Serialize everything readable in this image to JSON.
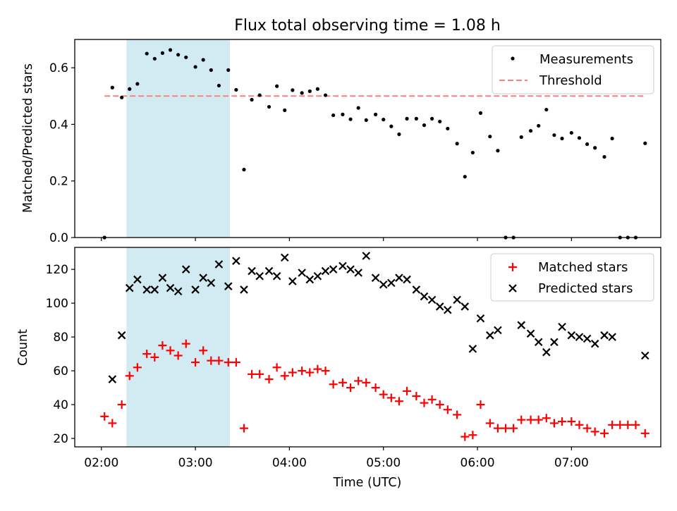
{
  "figure": {
    "title": "Flux total observing time = 1.08 h",
    "xlabel": "Time (UTC)",
    "x_tick_labels": [
      "02:00",
      "03:00",
      "04:00",
      "05:00",
      "06:00",
      "07:00"
    ],
    "x_range": [
      "01:43",
      "07:57"
    ],
    "highlight_span": [
      "02:16",
      "03:22"
    ],
    "highlight_color": "#add8e6"
  },
  "chart_data": [
    {
      "type": "scatter",
      "panel": "top",
      "ylabel": "Matched/Predicted stars",
      "ylim": [
        0,
        0.7
      ],
      "y_ticks": [
        "0.0",
        "0.2",
        "0.4",
        "0.6"
      ],
      "grid": false,
      "legend_position": "top-right",
      "series": [
        {
          "name": "Measurements",
          "marker": "dot",
          "color": "#000000",
          "points": [
            [
              "02:02",
              0.0
            ],
            [
              "02:07",
              0.53
            ],
            [
              "02:13",
              0.495
            ],
            [
              "02:18",
              0.525
            ],
            [
              "02:23",
              0.543
            ],
            [
              "02:29",
              0.65
            ],
            [
              "02:34",
              0.632
            ],
            [
              "02:39",
              0.652
            ],
            [
              "02:44",
              0.663
            ],
            [
              "02:49",
              0.646
            ],
            [
              "02:54",
              0.637
            ],
            [
              "03:00",
              0.603
            ],
            [
              "03:05",
              0.628
            ],
            [
              "03:10",
              0.592
            ],
            [
              "03:15",
              0.537
            ],
            [
              "03:21",
              0.592
            ],
            [
              "03:26",
              0.522
            ],
            [
              "03:31",
              0.24
            ],
            [
              "03:36",
              0.487
            ],
            [
              "03:41",
              0.503
            ],
            [
              "03:47",
              0.462
            ],
            [
              "03:52",
              0.535
            ],
            [
              "03:57",
              0.45
            ],
            [
              "04:02",
              0.521
            ],
            [
              "04:08",
              0.511
            ],
            [
              "04:13",
              0.517
            ],
            [
              "04:18",
              0.525
            ],
            [
              "04:23",
              0.503
            ],
            [
              "04:28",
              0.432
            ],
            [
              "04:34",
              0.435
            ],
            [
              "04:39",
              0.418
            ],
            [
              "04:44",
              0.458
            ],
            [
              "04:49",
              0.415
            ],
            [
              "04:55",
              0.435
            ],
            [
              "05:00",
              0.417
            ],
            [
              "05:05",
              0.393
            ],
            [
              "05:10",
              0.365
            ],
            [
              "05:15",
              0.42
            ],
            [
              "05:21",
              0.42
            ],
            [
              "05:26",
              0.397
            ],
            [
              "05:31",
              0.42
            ],
            [
              "05:36",
              0.41
            ],
            [
              "05:41",
              0.385
            ],
            [
              "05:47",
              0.332
            ],
            [
              "05:52",
              0.215
            ],
            [
              "05:57",
              0.3
            ],
            [
              "06:02",
              0.44
            ],
            [
              "06:08",
              0.357
            ],
            [
              "06:13",
              0.307
            ],
            [
              "06:18",
              0.0
            ],
            [
              "06:23",
              0.0
            ],
            [
              "06:28",
              0.355
            ],
            [
              "06:34",
              0.377
            ],
            [
              "06:39",
              0.395
            ],
            [
              "06:44",
              0.452
            ],
            [
              "06:49",
              0.362
            ],
            [
              "06:54",
              0.35
            ],
            [
              "07:00",
              0.37
            ],
            [
              "07:05",
              0.352
            ],
            [
              "07:10",
              0.33
            ],
            [
              "07:15",
              0.317
            ],
            [
              "07:21",
              0.285
            ],
            [
              "07:26",
              0.35
            ],
            [
              "07:31",
              0.0
            ],
            [
              "07:36",
              0.0
            ],
            [
              "07:41",
              0.0
            ],
            [
              "07:47",
              0.333
            ]
          ]
        },
        {
          "name": "Threshold",
          "marker": "dashed-line",
          "color": "#ff7f7f",
          "points": [
            [
              "02:02",
              0.5
            ],
            [
              "07:47",
              0.5
            ]
          ]
        }
      ]
    },
    {
      "type": "scatter",
      "panel": "bottom",
      "ylabel": "Count",
      "ylim": [
        15,
        133
      ],
      "y_ticks": [
        "20",
        "40",
        "60",
        "80",
        "100",
        "120"
      ],
      "grid": false,
      "legend_position": "top-right",
      "series": [
        {
          "name": "Matched stars",
          "marker": "plus",
          "color": "#ff0000",
          "points": [
            [
              "02:02",
              33
            ],
            [
              "02:07",
              29
            ],
            [
              "02:13",
              40
            ],
            [
              "02:18",
              57
            ],
            [
              "02:23",
              62
            ],
            [
              "02:29",
              70
            ],
            [
              "02:34",
              68
            ],
            [
              "02:39",
              75
            ],
            [
              "02:44",
              72
            ],
            [
              "02:49",
              69
            ],
            [
              "02:54",
              76
            ],
            [
              "03:00",
              65
            ],
            [
              "03:05",
              72
            ],
            [
              "03:10",
              66
            ],
            [
              "03:15",
              66
            ],
            [
              "03:21",
              65
            ],
            [
              "03:26",
              65
            ],
            [
              "03:31",
              26
            ],
            [
              "03:36",
              58
            ],
            [
              "03:41",
              58
            ],
            [
              "03:47",
              55
            ],
            [
              "03:52",
              62
            ],
            [
              "03:57",
              57
            ],
            [
              "04:02",
              59
            ],
            [
              "04:08",
              60
            ],
            [
              "04:13",
              59
            ],
            [
              "04:18",
              61
            ],
            [
              "04:23",
              60
            ],
            [
              "04:28",
              52
            ],
            [
              "04:34",
              53
            ],
            [
              "04:39",
              50
            ],
            [
              "04:44",
              54
            ],
            [
              "04:49",
              53
            ],
            [
              "04:55",
              50
            ],
            [
              "05:00",
              46
            ],
            [
              "05:05",
              44
            ],
            [
              "05:10",
              42
            ],
            [
              "05:15",
              48
            ],
            [
              "05:21",
              45
            ],
            [
              "05:26",
              41
            ],
            [
              "05:31",
              43
            ],
            [
              "05:36",
              40
            ],
            [
              "05:41",
              37
            ],
            [
              "05:47",
              34
            ],
            [
              "05:52",
              21
            ],
            [
              "05:57",
              22
            ],
            [
              "06:02",
              40
            ],
            [
              "06:08",
              29
            ],
            [
              "06:13",
              26
            ],
            [
              "06:18",
              26
            ],
            [
              "06:23",
              26
            ],
            [
              "06:28",
              31
            ],
            [
              "06:34",
              31
            ],
            [
              "06:39",
              31
            ],
            [
              "06:44",
              32
            ],
            [
              "06:49",
              29
            ],
            [
              "06:54",
              30
            ],
            [
              "07:00",
              30
            ],
            [
              "07:05",
              28
            ],
            [
              "07:10",
              26
            ],
            [
              "07:15",
              24
            ],
            [
              "07:21",
              23
            ],
            [
              "07:26",
              28
            ],
            [
              "07:31",
              28
            ],
            [
              "07:36",
              28
            ],
            [
              "07:41",
              28
            ],
            [
              "07:47",
              23
            ]
          ]
        },
        {
          "name": "Predicted stars",
          "marker": "x",
          "color": "#000000",
          "points": [
            [
              "02:07",
              55
            ],
            [
              "02:13",
              81
            ],
            [
              "02:18",
              109
            ],
            [
              "02:23",
              114
            ],
            [
              "02:29",
              108
            ],
            [
              "02:34",
              108
            ],
            [
              "02:39",
              115
            ],
            [
              "02:44",
              109
            ],
            [
              "02:49",
              107
            ],
            [
              "02:54",
              120
            ],
            [
              "03:00",
              108
            ],
            [
              "03:05",
              115
            ],
            [
              "03:10",
              112
            ],
            [
              "03:15",
              123
            ],
            [
              "03:21",
              110
            ],
            [
              "03:26",
              125
            ],
            [
              "03:31",
              108
            ],
            [
              "03:36",
              119
            ],
            [
              "03:41",
              116
            ],
            [
              "03:47",
              119
            ],
            [
              "03:52",
              116
            ],
            [
              "03:57",
              127
            ],
            [
              "04:02",
              113
            ],
            [
              "04:08",
              118
            ],
            [
              "04:13",
              114
            ],
            [
              "04:18",
              116
            ],
            [
              "04:23",
              119
            ],
            [
              "04:28",
              120
            ],
            [
              "04:34",
              122
            ],
            [
              "04:39",
              120
            ],
            [
              "04:44",
              118
            ],
            [
              "04:49",
              128
            ],
            [
              "04:55",
              115
            ],
            [
              "05:00",
              111
            ],
            [
              "05:05",
              112
            ],
            [
              "05:10",
              115
            ],
            [
              "05:15",
              114
            ],
            [
              "05:21",
              108
            ],
            [
              "05:26",
              104
            ],
            [
              "05:31",
              102
            ],
            [
              "05:36",
              98
            ],
            [
              "05:41",
              96
            ],
            [
              "05:47",
              102
            ],
            [
              "05:52",
              98
            ],
            [
              "05:57",
              73
            ],
            [
              "06:02",
              91
            ],
            [
              "06:08",
              81
            ],
            [
              "06:13",
              84
            ],
            [
              "06:28",
              87
            ],
            [
              "06:34",
              82
            ],
            [
              "06:39",
              77
            ],
            [
              "06:44",
              71
            ],
            [
              "06:49",
              77
            ],
            [
              "06:54",
              86
            ],
            [
              "07:00",
              81
            ],
            [
              "07:05",
              80
            ],
            [
              "07:10",
              79
            ],
            [
              "07:15",
              76
            ],
            [
              "07:21",
              81
            ],
            [
              "07:26",
              80
            ],
            [
              "07:47",
              69
            ]
          ]
        }
      ]
    }
  ]
}
